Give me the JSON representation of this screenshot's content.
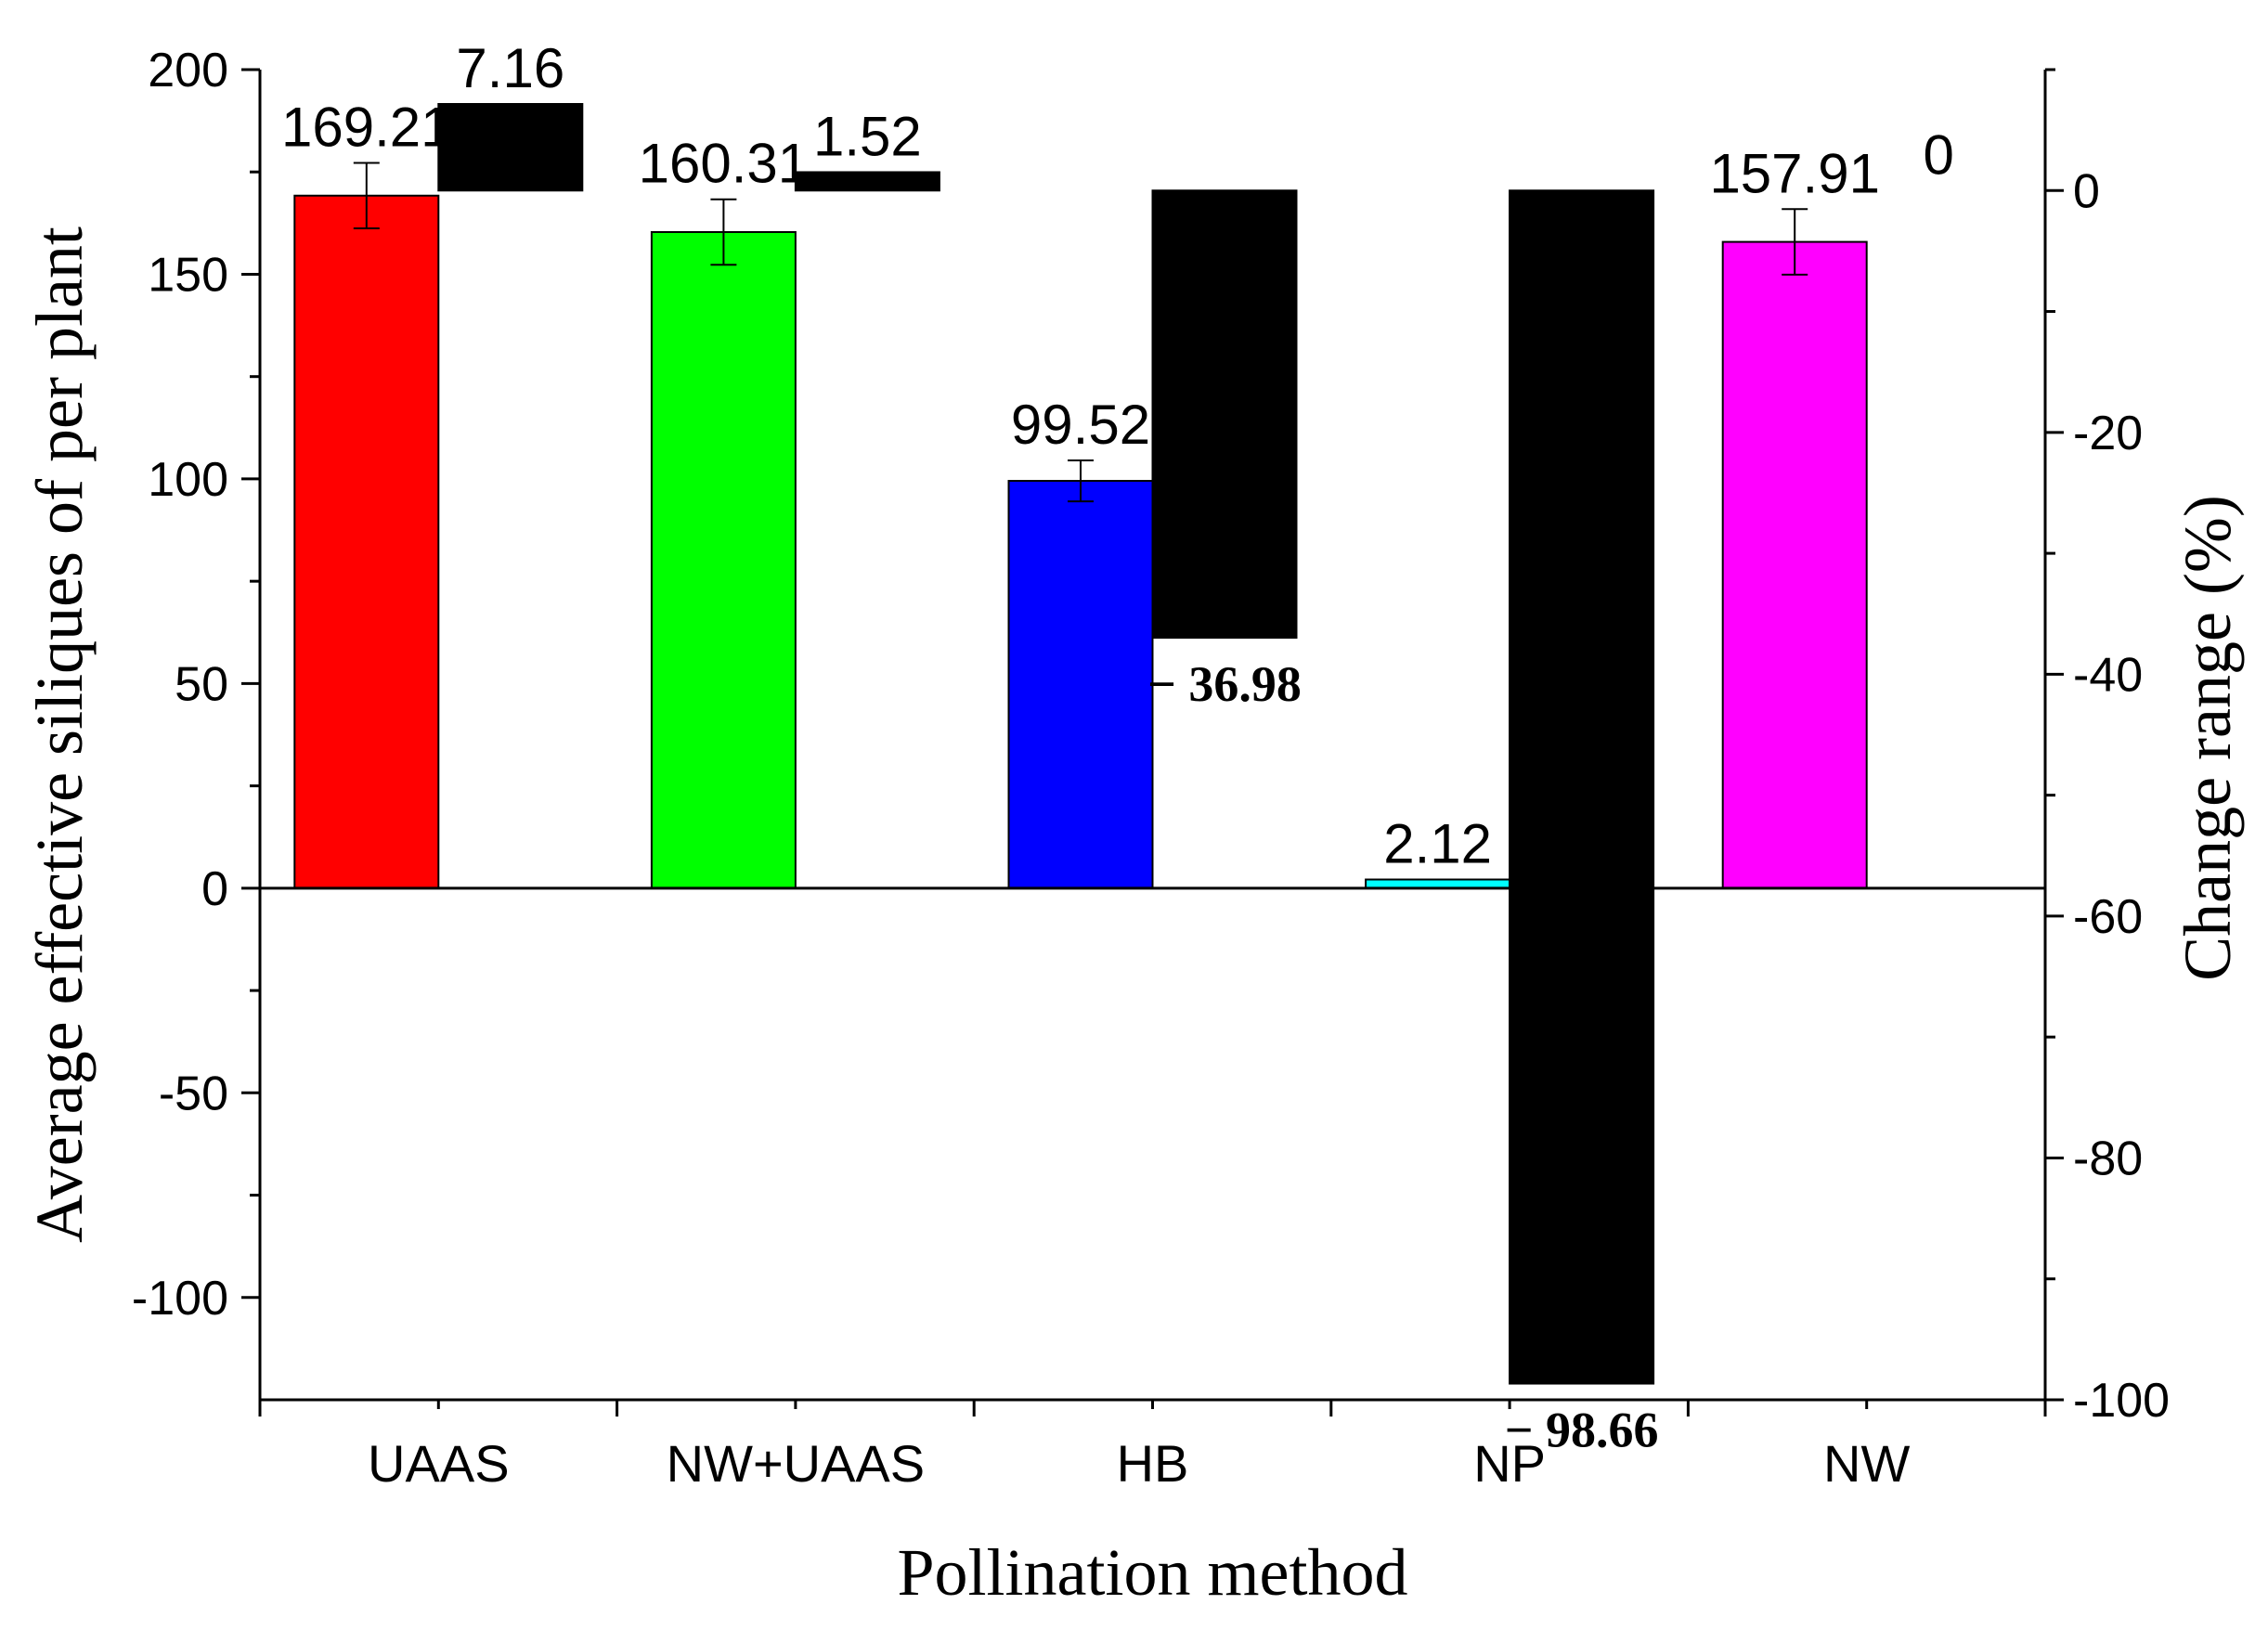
{
  "chart_data": {
    "type": "bar",
    "xlabel": "Pollination method",
    "ylabel": "Average effective siliques of per plant",
    "y2label": "Change range (%)",
    "ylim": [
      -125,
      200
    ],
    "y2lim": [
      -100,
      10
    ],
    "yticks": [
      -100,
      -50,
      0,
      50,
      100,
      150,
      200
    ],
    "y2ticks": [
      -100,
      -80,
      -60,
      -40,
      -20,
      0
    ],
    "categories": [
      "UAAS",
      "NW+UAAS",
      "HB",
      "NP",
      "NW"
    ],
    "series": [
      {
        "name": "Average effective siliques",
        "values": [
          169.21,
          160.31,
          99.52,
          2.12,
          157.91
        ],
        "labels": [
          "169.21",
          "160.31",
          "99.52",
          "2.12",
          "157.91"
        ],
        "errors": [
          8,
          8,
          5,
          0,
          8
        ],
        "colors": [
          "#ff0000",
          "#00ff00",
          "#0000ff",
          "#00ffff",
          "#ff00ff"
        ]
      },
      {
        "name": "Change range",
        "values": [
          7.16,
          1.52,
          -36.98,
          -98.66,
          0
        ],
        "labels": [
          "7.16",
          "1.52",
          "− 36.98",
          "− 98.66",
          "0"
        ],
        "color": "#000000"
      }
    ]
  }
}
